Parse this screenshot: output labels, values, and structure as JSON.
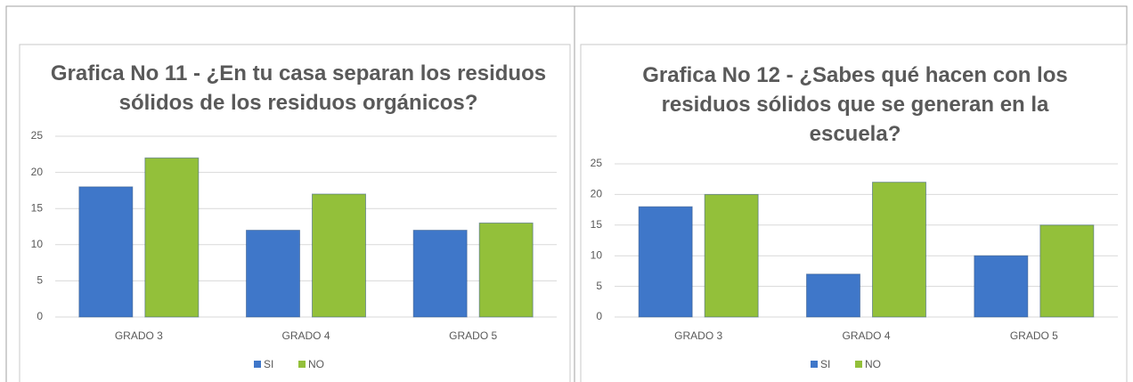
{
  "chart_data": [
    {
      "type": "bar",
      "title": "Grafica No 11 - ¿En tu casa separan los residuos sólidos de los residuos orgánicos?",
      "categories": [
        "GRADO 3",
        "GRADO 4",
        "GRADO 5"
      ],
      "series": [
        {
          "name": "SI",
          "color": "#3f77c9",
          "values": [
            18,
            12,
            12
          ]
        },
        {
          "name": "NO",
          "color": "#93c03a",
          "values": [
            22,
            17,
            13
          ]
        }
      ],
      "ylim": [
        0,
        25
      ],
      "yticks": [
        0,
        5,
        10,
        15,
        20,
        25
      ],
      "grid": true,
      "legend": "bottom"
    },
    {
      "type": "bar",
      "title": "Grafica No 12 - ¿Sabes qué hacen con los residuos sólidos que se generan en la escuela?",
      "categories": [
        "GRADO 3",
        "GRADO 4",
        "GRADO 5"
      ],
      "series": [
        {
          "name": "SI",
          "color": "#3f77c9",
          "values": [
            18,
            7,
            10
          ]
        },
        {
          "name": "NO",
          "color": "#93c03a",
          "values": [
            20,
            22,
            15
          ]
        }
      ],
      "ylim": [
        0,
        25
      ],
      "yticks": [
        0,
        5,
        10,
        15,
        20,
        25
      ],
      "grid": true,
      "legend": "bottom"
    }
  ]
}
